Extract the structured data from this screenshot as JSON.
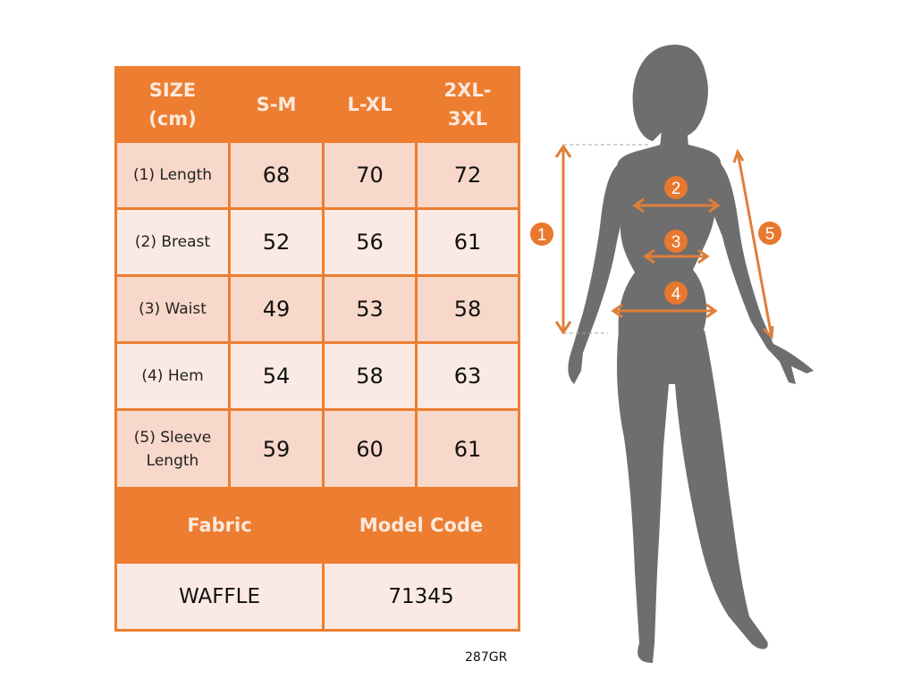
{
  "table": {
    "header": [
      "SIZE (cm)",
      "S-M",
      "L-XL",
      "2XL-3XL"
    ],
    "header_lines": [
      [
        "SIZE",
        "(cm)"
      ],
      [
        "S-M"
      ],
      [
        "L-XL"
      ],
      [
        "2XL-",
        "3XL"
      ]
    ],
    "rows": [
      {
        "label": "(1) Length",
        "label_lines": [
          "(1) Length"
        ],
        "values": [
          "68",
          "70",
          "72"
        ]
      },
      {
        "label": "(2) Breast",
        "label_lines": [
          "(2) Breast"
        ],
        "values": [
          "52",
          "56",
          "61"
        ]
      },
      {
        "label": "(3) Waist",
        "label_lines": [
          "(3) Waist"
        ],
        "values": [
          "49",
          "53",
          "58"
        ]
      },
      {
        "label": "(4) Hem",
        "label_lines": [
          "(4) Hem"
        ],
        "values": [
          "54",
          "58",
          "63"
        ]
      },
      {
        "label": "(5) Sleeve Length",
        "label_lines": [
          "(5) Sleeve",
          "Length"
        ],
        "values": [
          "59",
          "60",
          "61"
        ]
      }
    ],
    "fabric_label": "Fabric",
    "model_code_label": "Model Code",
    "fabric_value": "WAFFLE",
    "model_code_value": "71345"
  },
  "product_code": "287GR",
  "figure": {
    "markers": [
      "1",
      "2",
      "3",
      "4",
      "5"
    ],
    "colors": {
      "accent": "#ED7D31",
      "silhouette": "#6E6E6E"
    }
  }
}
